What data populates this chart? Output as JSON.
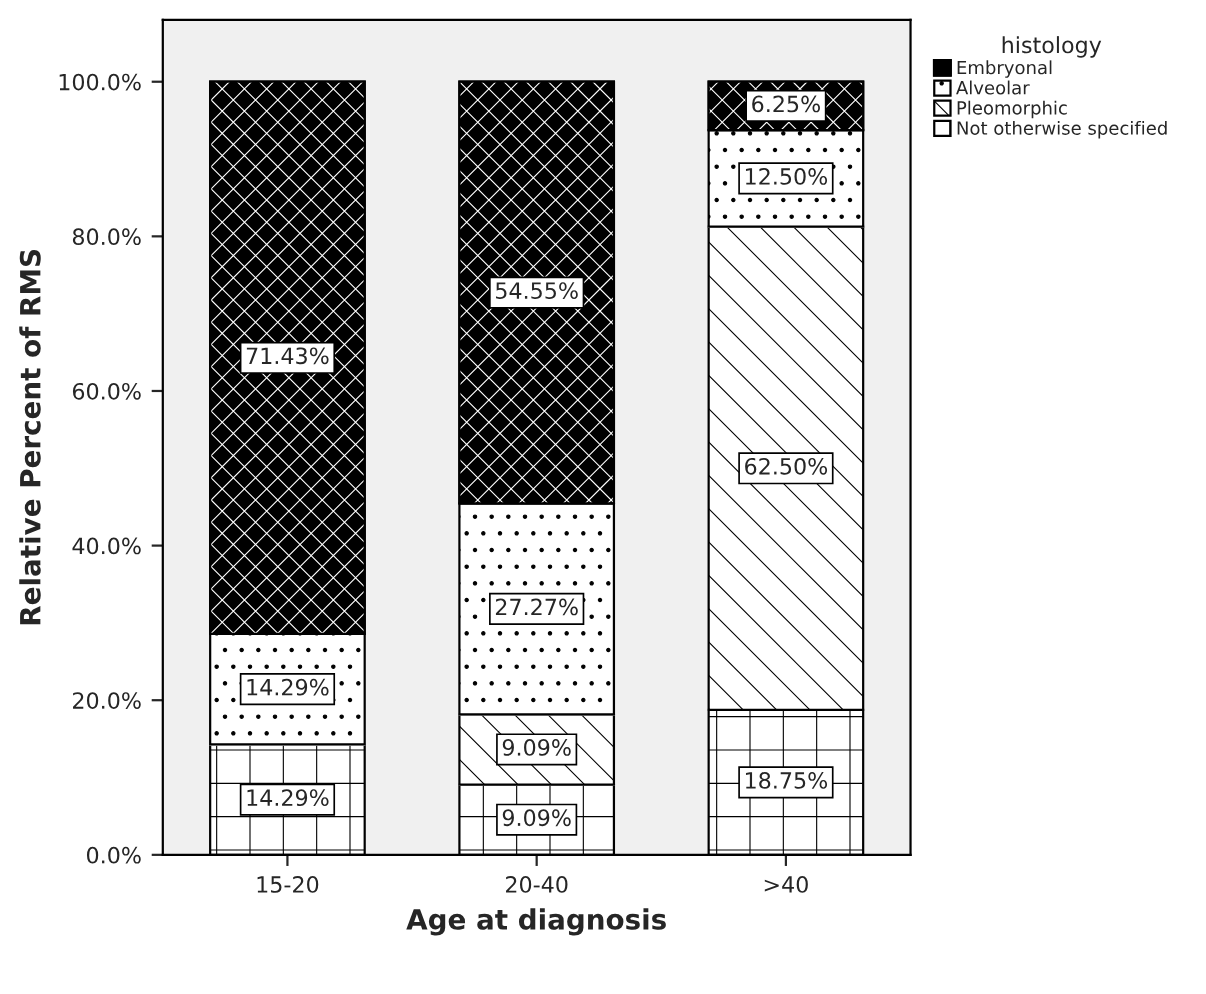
{
  "chart_data": {
    "type": "bar",
    "stacked": true,
    "xlabel": "Age at diagnosis",
    "ylabel": "Relative Percent of RMS",
    "legend_title": "histology",
    "legend": "top right",
    "categories": [
      "15-20",
      "20-40",
      ">40"
    ],
    "series": [
      {
        "name": "Not otherwise specified",
        "color": "#ffffff",
        "values": [
          14.29,
          9.09,
          18.75
        ],
        "value_labels": [
          "14.29%",
          "9.09%",
          "18.75%"
        ]
      },
      {
        "name": "Pleomorphic",
        "color": "#ffffff",
        "values": [
          0,
          9.09,
          62.5
        ],
        "value_labels": [
          null,
          "9.09%",
          "62.50%"
        ]
      },
      {
        "name": "Alveolar",
        "color": "#ffffff",
        "values": [
          14.29,
          27.27,
          12.5
        ],
        "value_labels": [
          "14.29%",
          "27.27%",
          "12.50%"
        ]
      },
      {
        "name": "Embryonal",
        "color": "#000000",
        "values": [
          71.43,
          54.55,
          6.25
        ],
        "value_labels": [
          "71.43%",
          "54.55%",
          "6.25%"
        ]
      }
    ],
    "ylim": [
      0,
      108
    ],
    "yticks": [
      {
        "value": 0,
        "label": "0.0%"
      },
      {
        "value": 20,
        "label": "20.0%"
      },
      {
        "value": 40,
        "label": "40.0%"
      },
      {
        "value": 60,
        "label": "60.0%"
      },
      {
        "value": 80,
        "label": "80.0%"
      },
      {
        "value": 100,
        "label": "100.0%"
      }
    ],
    "grid": false
  }
}
